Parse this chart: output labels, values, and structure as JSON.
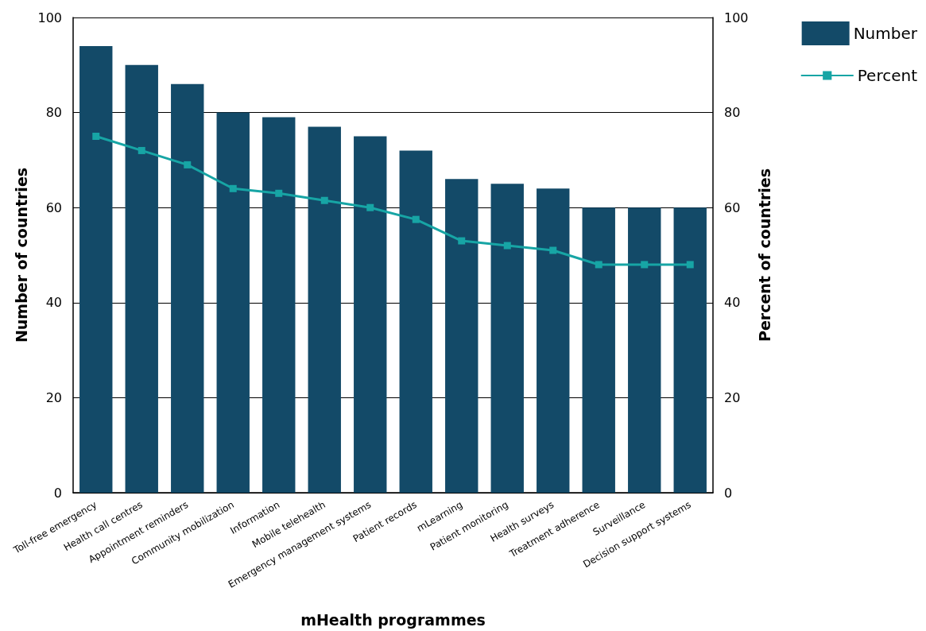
{
  "chart_data": {
    "type": "bar",
    "xlabel": "mHealth programmes",
    "ylabel": "Number of countries",
    "y2label": "Percent of countries",
    "categories": [
      "Toll-free emergency",
      "Health call centres",
      "Appointment reminders",
      "Community mobilization",
      "Information",
      "Mobile telehealth",
      "Emergency management systems",
      "Patient records",
      "mLearning",
      "Patient monitoring",
      "Health surveys",
      "Treatment adherence",
      "Surveillance",
      "Decision support systems"
    ],
    "series": [
      {
        "name": "Number",
        "color": "#134a68",
        "values": [
          94,
          90,
          86,
          80,
          79,
          77,
          75,
          72,
          66,
          65,
          64,
          60,
          60,
          60
        ]
      },
      {
        "name": "Percent",
        "type": "line",
        "axis": "y2",
        "color": "#17a5a5",
        "marker": "square",
        "line_style": "solid",
        "values": [
          75,
          72,
          69,
          64,
          63,
          61.5,
          60,
          57.5,
          53,
          52,
          51,
          48,
          48,
          48
        ]
      }
    ],
    "ylim": [
      0,
      100
    ],
    "yticks": [
      0,
      20,
      40,
      60,
      80,
      100
    ],
    "y2lim": [
      0,
      100
    ],
    "y2ticks": [
      0,
      20,
      40,
      60,
      80,
      100
    ],
    "grid": "y",
    "legend": "top right"
  }
}
